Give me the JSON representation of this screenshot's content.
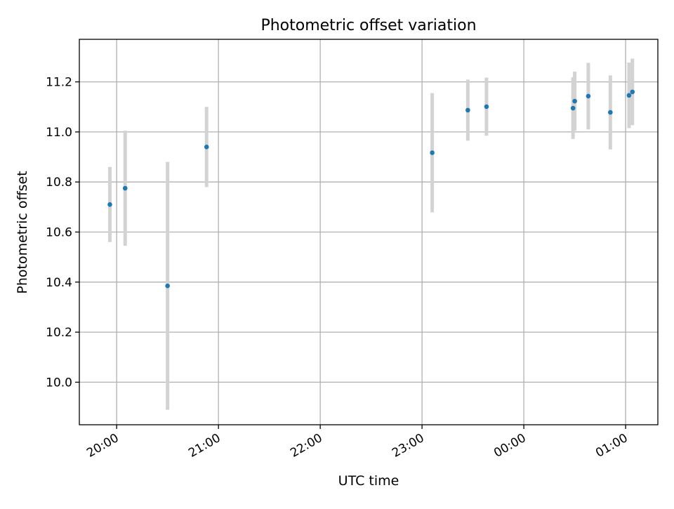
{
  "chart_data": {
    "type": "scatter",
    "title": "Photometric offset variation",
    "xlabel": "UTC time",
    "ylabel": "Photometric offset",
    "x_tick_labels": [
      "20:00",
      "21:00",
      "22:00",
      "23:00",
      "00:00",
      "01:00"
    ],
    "y_tick_labels": [
      "10.0",
      "10.2",
      "10.4",
      "10.6",
      "10.8",
      "11.0",
      "11.2"
    ],
    "grid": true,
    "series": [
      {
        "marker_color": "#1f77b4",
        "errorbar_color": "#d3d3d3",
        "points": [
          {
            "x": "19:56",
            "y": 10.71,
            "err": 0.15
          },
          {
            "x": "20:05",
            "y": 10.775,
            "err": 0.23
          },
          {
            "x": "20:30",
            "y": 10.385,
            "err": 0.495
          },
          {
            "x": "20:53",
            "y": 10.94,
            "err": 0.16
          },
          {
            "x": "23:06",
            "y": 10.917,
            "err": 0.238
          },
          {
            "x": "23:27",
            "y": 11.087,
            "err": 0.122
          },
          {
            "x": "23:38",
            "y": 11.101,
            "err": 0.116
          },
          {
            "x": "00:29",
            "y": 11.095,
            "err": 0.123
          },
          {
            "x": "00:30",
            "y": 11.123,
            "err": 0.118
          },
          {
            "x": "00:38",
            "y": 11.143,
            "err": 0.133
          },
          {
            "x": "00:51",
            "y": 11.078,
            "err": 0.148
          },
          {
            "x": "01:02",
            "y": 11.146,
            "err": 0.131
          },
          {
            "x": "01:04",
            "y": 11.16,
            "err": 0.133
          }
        ]
      }
    ]
  }
}
